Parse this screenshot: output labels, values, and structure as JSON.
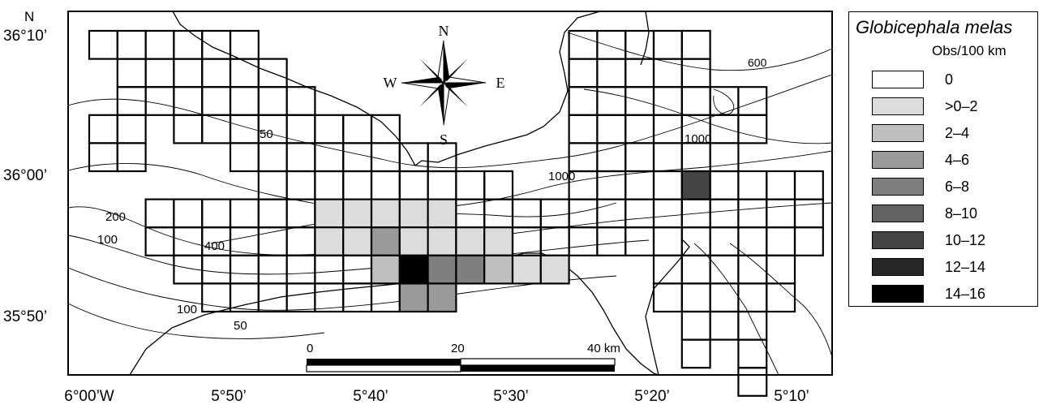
{
  "north_label": "N",
  "compass": {
    "n": "N",
    "s": "S",
    "e": "E",
    "w": "W"
  },
  "lat_labels": [
    "36°10’",
    "36°00’",
    "35°50’"
  ],
  "lon_labels": [
    "6°00’W",
    "5°50’",
    "5°40’",
    "5°30’",
    "5°20’",
    "5°10’"
  ],
  "contour_labels": [
    "600",
    "1000",
    "1000",
    "50",
    "200",
    "100",
    "400",
    "100",
    "50"
  ],
  "scale_bar": {
    "labels": [
      "0",
      "20",
      "40 km"
    ]
  },
  "legend": {
    "title": "Globicephala melas",
    "subtitle": "Obs/100 km",
    "classes": [
      {
        "label": "0",
        "color": "#ffffff"
      },
      {
        "label": ">0–2",
        "color": "#dcdcdc"
      },
      {
        "label": "2–4",
        "color": "#bfbfbf"
      },
      {
        "label": "4–6",
        "color": "#9a9a9a"
      },
      {
        "label": "6–8",
        "color": "#7f7f7f"
      },
      {
        "label": "8–10",
        "color": "#626262"
      },
      {
        "label": "10–12",
        "color": "#444444"
      },
      {
        "label": "12–14",
        "color": "#262626"
      },
      {
        "label": "14–16",
        "color": "#000000"
      }
    ]
  },
  "survey_grid": {
    "note": "cells listed as [column, row, legend class index]",
    "cells": [
      [
        0,
        0,
        0
      ],
      [
        1,
        0,
        0
      ],
      [
        2,
        0,
        0
      ],
      [
        3,
        0,
        0
      ],
      [
        4,
        0,
        0
      ],
      [
        5,
        0,
        0
      ],
      [
        1,
        1,
        0
      ],
      [
        2,
        1,
        0
      ],
      [
        3,
        1,
        0
      ],
      [
        4,
        1,
        0
      ],
      [
        5,
        1,
        0
      ],
      [
        6,
        1,
        0
      ],
      [
        1,
        2,
        0
      ],
      [
        2,
        2,
        0
      ],
      [
        3,
        2,
        0
      ],
      [
        4,
        2,
        0
      ],
      [
        5,
        2,
        0
      ],
      [
        6,
        2,
        0
      ],
      [
        7,
        2,
        0
      ],
      [
        0,
        3,
        0
      ],
      [
        1,
        3,
        0
      ],
      [
        3,
        3,
        0
      ],
      [
        4,
        3,
        0
      ],
      [
        5,
        3,
        0
      ],
      [
        6,
        3,
        0
      ],
      [
        7,
        3,
        0
      ],
      [
        8,
        3,
        0
      ],
      [
        9,
        3,
        0
      ],
      [
        10,
        3,
        0
      ],
      [
        0,
        4,
        0
      ],
      [
        1,
        4,
        0
      ],
      [
        5,
        4,
        0
      ],
      [
        6,
        4,
        0
      ],
      [
        7,
        4,
        0
      ],
      [
        8,
        4,
        0
      ],
      [
        9,
        4,
        0
      ],
      [
        10,
        4,
        0
      ],
      [
        11,
        4,
        0
      ],
      [
        12,
        4,
        0
      ],
      [
        6,
        5,
        0
      ],
      [
        7,
        5,
        0
      ],
      [
        8,
        5,
        0
      ],
      [
        9,
        5,
        0
      ],
      [
        10,
        5,
        0
      ],
      [
        11,
        5,
        0
      ],
      [
        12,
        5,
        0
      ],
      [
        13,
        5,
        0
      ],
      [
        14,
        5,
        0
      ],
      [
        2,
        6,
        0
      ],
      [
        3,
        6,
        0
      ],
      [
        4,
        6,
        0
      ],
      [
        5,
        6,
        0
      ],
      [
        6,
        6,
        0
      ],
      [
        7,
        6,
        0
      ],
      [
        8,
        6,
        1
      ],
      [
        9,
        6,
        1
      ],
      [
        10,
        6,
        1
      ],
      [
        11,
        6,
        1
      ],
      [
        12,
        6,
        1
      ],
      [
        13,
        6,
        0
      ],
      [
        14,
        6,
        0
      ],
      [
        15,
        6,
        0
      ],
      [
        16,
        6,
        0
      ],
      [
        2,
        7,
        0
      ],
      [
        3,
        7,
        0
      ],
      [
        4,
        7,
        0
      ],
      [
        5,
        7,
        0
      ],
      [
        6,
        7,
        0
      ],
      [
        7,
        7,
        0
      ],
      [
        8,
        7,
        1
      ],
      [
        9,
        7,
        1
      ],
      [
        10,
        7,
        3
      ],
      [
        11,
        7,
        1
      ],
      [
        12,
        7,
        1
      ],
      [
        13,
        7,
        1
      ],
      [
        14,
        7,
        1
      ],
      [
        15,
        7,
        0
      ],
      [
        16,
        7,
        0
      ],
      [
        3,
        8,
        0
      ],
      [
        4,
        8,
        0
      ],
      [
        5,
        8,
        0
      ],
      [
        6,
        8,
        0
      ],
      [
        7,
        8,
        0
      ],
      [
        8,
        8,
        0
      ],
      [
        9,
        8,
        0
      ],
      [
        10,
        8,
        2
      ],
      [
        11,
        8,
        8
      ],
      [
        12,
        8,
        4
      ],
      [
        13,
        8,
        4
      ],
      [
        14,
        8,
        2
      ],
      [
        15,
        8,
        1
      ],
      [
        16,
        8,
        1
      ],
      [
        4,
        9,
        0
      ],
      [
        5,
        9,
        0
      ],
      [
        6,
        9,
        0
      ],
      [
        7,
        9,
        0
      ],
      [
        8,
        9,
        0
      ],
      [
        9,
        9,
        0
      ],
      [
        10,
        9,
        0
      ],
      [
        11,
        9,
        3
      ],
      [
        12,
        9,
        3
      ],
      [
        17,
        0,
        0
      ],
      [
        18,
        0,
        0
      ],
      [
        19,
        0,
        0
      ],
      [
        20,
        0,
        0
      ],
      [
        21,
        0,
        0
      ],
      [
        17,
        1,
        0
      ],
      [
        18,
        1,
        0
      ],
      [
        19,
        1,
        0
      ],
      [
        20,
        1,
        0
      ],
      [
        21,
        1,
        0
      ],
      [
        17,
        2,
        0
      ],
      [
        18,
        2,
        0
      ],
      [
        19,
        2,
        0
      ],
      [
        20,
        2,
        0
      ],
      [
        21,
        2,
        0
      ],
      [
        22,
        2,
        0
      ],
      [
        23,
        2,
        0
      ],
      [
        17,
        3,
        0
      ],
      [
        18,
        3,
        0
      ],
      [
        19,
        3,
        0
      ],
      [
        20,
        3,
        0
      ],
      [
        21,
        3,
        0
      ],
      [
        22,
        3,
        0
      ],
      [
        23,
        3,
        0
      ],
      [
        17,
        4,
        0
      ],
      [
        18,
        4,
        0
      ],
      [
        19,
        4,
        0
      ],
      [
        20,
        4,
        0
      ],
      [
        21,
        4,
        0
      ],
      [
        22,
        4,
        0
      ],
      [
        17,
        5,
        0
      ],
      [
        18,
        5,
        0
      ],
      [
        19,
        5,
        0
      ],
      [
        20,
        5,
        0
      ],
      [
        21,
        5,
        6
      ],
      [
        22,
        5,
        0
      ],
      [
        23,
        5,
        0
      ],
      [
        24,
        5,
        0
      ],
      [
        25,
        5,
        0
      ],
      [
        17,
        6,
        0
      ],
      [
        18,
        6,
        0
      ],
      [
        19,
        6,
        0
      ],
      [
        20,
        6,
        0
      ],
      [
        21,
        6,
        0
      ],
      [
        22,
        6,
        0
      ],
      [
        23,
        6,
        0
      ],
      [
        24,
        6,
        0
      ],
      [
        25,
        6,
        0
      ],
      [
        17,
        7,
        0
      ],
      [
        18,
        7,
        0
      ],
      [
        19,
        7,
        0
      ],
      [
        20,
        7,
        0
      ],
      [
        21,
        7,
        0
      ],
      [
        22,
        7,
        0
      ],
      [
        23,
        7,
        0
      ],
      [
        24,
        7,
        0
      ],
      [
        25,
        7,
        0
      ],
      [
        20,
        8,
        0
      ],
      [
        21,
        8,
        0
      ],
      [
        22,
        8,
        0
      ],
      [
        23,
        8,
        0
      ],
      [
        24,
        8,
        0
      ],
      [
        20,
        9,
        0
      ],
      [
        21,
        9,
        0
      ],
      [
        22,
        9,
        0
      ],
      [
        23,
        9,
        0
      ],
      [
        24,
        9,
        0
      ],
      [
        21,
        10,
        0
      ],
      [
        22,
        10,
        0
      ],
      [
        23,
        10,
        0
      ],
      [
        21,
        11,
        0
      ],
      [
        23,
        11,
        0
      ],
      [
        23,
        12,
        0
      ]
    ]
  }
}
